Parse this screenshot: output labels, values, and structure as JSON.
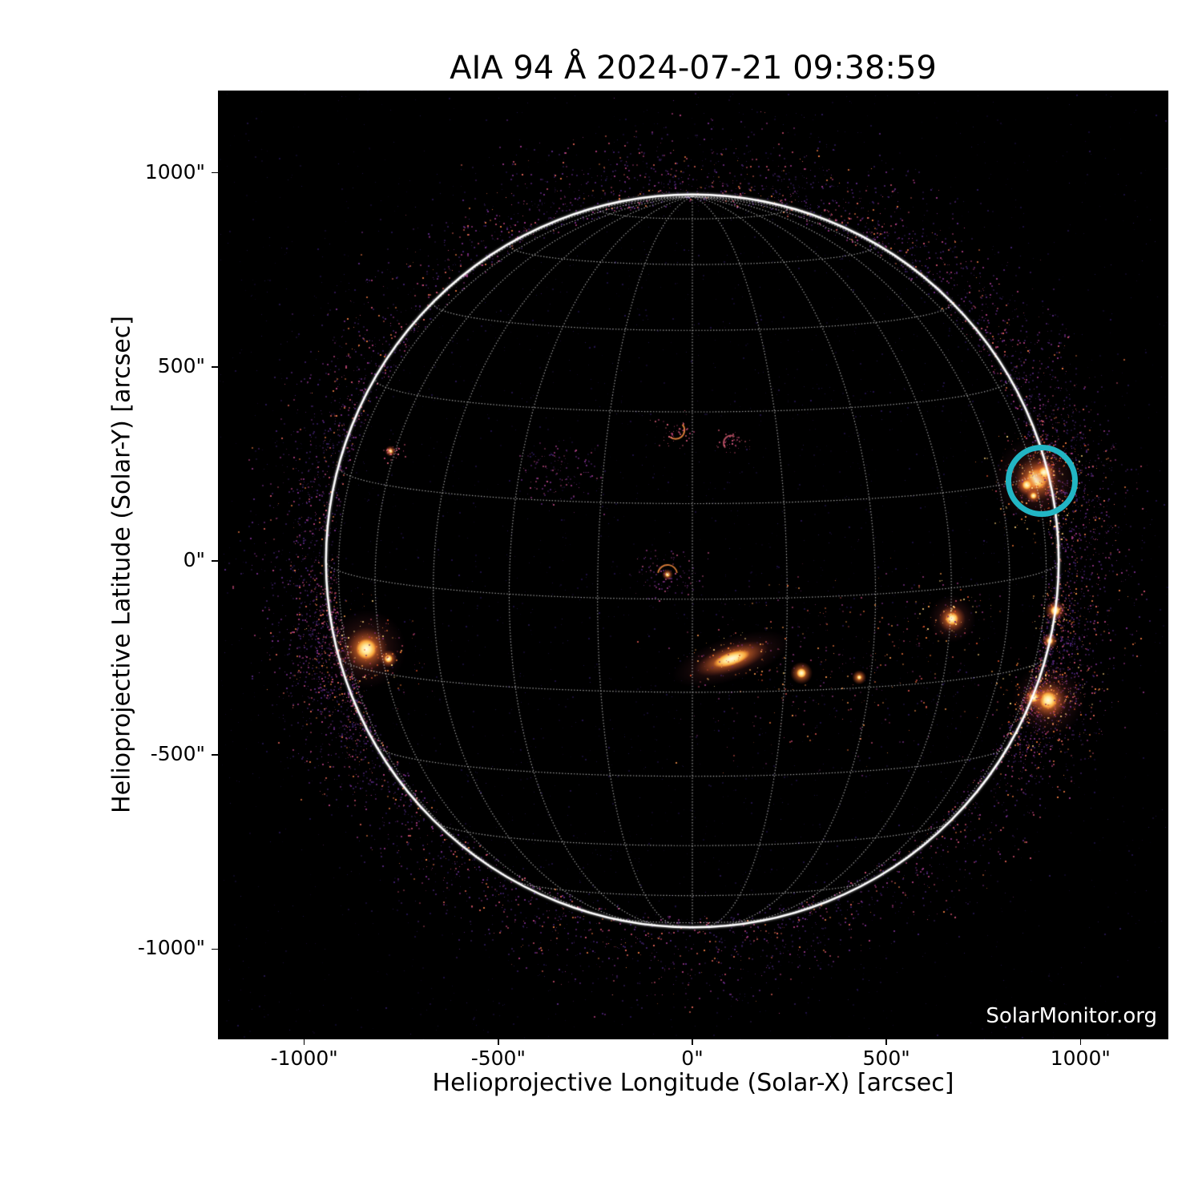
{
  "header": {
    "title": "AIA 94 Å 2024-07-21 09:38:59"
  },
  "watermark": "SolarMonitor.org",
  "chart_data": {
    "type": "solar_disk_image",
    "title": "AIA 94 Å 2024-07-21 09:38:59",
    "instrument": "AIA",
    "wavelength": "94 Å",
    "observation_time": "2024-07-21 09:38:59",
    "xlabel": "Helioprojective Longitude (Solar-X) [arcsec]",
    "ylabel": "Helioprojective Latitude (Solar-Y) [arcsec]",
    "xlim": [
      -1222,
      1226
    ],
    "ylim": [
      -1233,
      1212
    ],
    "x_ticks": {
      "values": [
        -1000,
        -500,
        0,
        500,
        1000
      ],
      "labels": [
        "-1000\"",
        "-500\"",
        "0\"",
        "500\"",
        "1000\""
      ]
    },
    "y_ticks": {
      "values": [
        1000,
        500,
        0,
        -500,
        -1000
      ],
      "labels": [
        "1000\"",
        "500\"",
        "0\"",
        "-500\"",
        "-1000\""
      ]
    },
    "background_color": "#000000",
    "grid": {
      "on": true,
      "spacing_deg": 15,
      "b0_deg": 6,
      "color": "235,235,235",
      "alpha": 0.72,
      "style": "dotted"
    },
    "solar_limb": {
      "radius_arcsec": 944,
      "color": "#ffffff"
    },
    "annotation": {
      "type": "circle",
      "x_arcsec": 900,
      "y_arcsec": 207,
      "radius_arcsec": 78,
      "color": "#22b5c4",
      "stroke_px": 7
    },
    "palettes": {
      "hot": [
        "#ffd27a",
        "#f59a48",
        "#e86f30",
        "#d14c28",
        "#a63a52",
        "#7c2c68"
      ],
      "field": [
        "#6f2a60",
        "#99355f",
        "#bf4a45",
        "#de6a36",
        "#5a2364",
        "#e88a46"
      ],
      "purple": [
        "#4a1e66",
        "#6b2a7e",
        "#8d327e",
        "#b04676"
      ],
      "pink": [
        "#c85070",
        "#e0607a",
        "#a83a68"
      ],
      "pinktrail": [
        "#b04070",
        "#d05878",
        "#8a3070",
        "#e07050"
      ]
    },
    "noise": {
      "seed": 1234,
      "page_dots": {
        "n": 2400,
        "colors": [
          "#120a2a",
          "#1c1042",
          "#261457",
          "#2e1b60"
        ]
      },
      "disk_dots": {
        "n": 800,
        "colors": [
          "#190e38",
          "#241453",
          "#2e1a62"
        ]
      },
      "corona": {
        "n": 3600,
        "colors": [
          "#301a52",
          "#3f1f6d",
          "#55257a",
          "#702a83",
          "#8f3280",
          "#a93a77",
          "#c24a69",
          "#d75e53",
          "#e2733f"
        ]
      },
      "hotspots": [
        {
          "angle_deg": 165,
          "width_deg": 9,
          "n": 500,
          "spread": 40
        },
        {
          "angle_deg": -13,
          "width_deg": 10,
          "n": 600,
          "spread": 46
        },
        {
          "angle_deg": 21,
          "width_deg": 9,
          "n": 480,
          "spread": 44
        },
        {
          "angle_deg": -160,
          "width_deg": 8,
          "n": 240,
          "spread": 36
        },
        {
          "angle_deg": 14,
          "width_deg": 5,
          "n": 200,
          "spread": 30
        },
        {
          "angle_deg": 90,
          "width_deg": 30,
          "n": 320,
          "spread": 48
        },
        {
          "angle_deg": 160,
          "width_deg": 18,
          "n": 280,
          "spread": 42
        },
        {
          "angle_deg": -48,
          "width_deg": 22,
          "n": 240,
          "spread": 40
        },
        {
          "angle_deg": -90,
          "width_deg": 25,
          "n": 400,
          "spread": 34
        }
      ]
    },
    "features": [
      {
        "type": "blob",
        "x": -840,
        "y": -227,
        "core": 13,
        "halo": 27,
        "glow": 50
      },
      {
        "type": "blob",
        "x": -783,
        "y": -252,
        "core": 5,
        "halo": 11,
        "glow": 0
      },
      {
        "type": "speckles",
        "x": -840,
        "y": -227,
        "n": 160,
        "sx": 70,
        "sy": 55,
        "palette": "hot"
      },
      {
        "type": "blob",
        "x": 101,
        "y": -252,
        "core": 14,
        "halo": 28,
        "glow": 46,
        "rot": -18,
        "esx": 1.7,
        "esy": 0.6
      },
      {
        "type": "speckles",
        "x": 101,
        "y": -252,
        "n": 70,
        "sx": 55,
        "sy": 40,
        "palette": "hot"
      },
      {
        "type": "speckles",
        "x": 343,
        "y": -268,
        "n": 300,
        "sx": 175,
        "sy": 120,
        "palette": "field"
      },
      {
        "type": "blob",
        "x": 281,
        "y": -289,
        "core": 6,
        "halo": 14,
        "glow": 0
      },
      {
        "type": "blob",
        "x": 430,
        "y": -300,
        "core": 3,
        "halo": 9,
        "glow": 0
      },
      {
        "type": "blob",
        "x": 669,
        "y": -149,
        "core": 8,
        "halo": 17,
        "glow": 30
      },
      {
        "type": "speckles",
        "x": 669,
        "y": -149,
        "n": 90,
        "sx": 55,
        "sy": 45,
        "palette": "hot"
      },
      {
        "type": "blob",
        "x": 888,
        "y": 211,
        "core": 13,
        "halo": 27,
        "glow": 55
      },
      {
        "type": "blob",
        "x": 862,
        "y": 196,
        "core": 6,
        "halo": 13,
        "glow": 0
      },
      {
        "type": "blob",
        "x": 906,
        "y": 228,
        "core": 7,
        "halo": 15,
        "glow": 0
      },
      {
        "type": "blob",
        "x": 879,
        "y": 168,
        "core": 4,
        "halo": 9,
        "glow": 0
      },
      {
        "type": "speckles",
        "x": 888,
        "y": 205,
        "n": 240,
        "sx": 60,
        "sy": 60,
        "palette": "hot"
      },
      {
        "type": "limbtrail",
        "a0": -22,
        "a1": -2,
        "n": 90,
        "palette": "hot"
      },
      {
        "type": "blob",
        "x": 935,
        "y": -128,
        "core": 6,
        "halo": 13,
        "glow": 0
      },
      {
        "type": "speckles",
        "x": 935,
        "y": -128,
        "n": 60,
        "sx": 30,
        "sy": 30,
        "palette": "hot"
      },
      {
        "type": "blob",
        "x": 921,
        "y": -206,
        "core": 4,
        "halo": 10,
        "glow": 0
      },
      {
        "type": "blob",
        "x": 917,
        "y": -359,
        "core": 11,
        "halo": 24,
        "glow": 46
      },
      {
        "type": "blob",
        "x": 880,
        "y": -352,
        "core": 6,
        "halo": 13,
        "glow": 0
      },
      {
        "type": "speckles",
        "x": 905,
        "y": -355,
        "n": 220,
        "sx": 65,
        "sy": 55,
        "palette": "hot"
      },
      {
        "type": "limbtrail",
        "a0": 16,
        "a1": 30,
        "n": 80,
        "palette": "hot"
      },
      {
        "type": "arc",
        "x": -64,
        "y": -35,
        "r": 12,
        "a0": 190,
        "a1": 350,
        "color": "#e8843c",
        "w": 2,
        "alpha": 0.9
      },
      {
        "type": "blob",
        "x": -64,
        "y": -35,
        "core": 3,
        "halo": 7,
        "glow": 0
      },
      {
        "type": "speckles",
        "x": -64,
        "y": -35,
        "n": 110,
        "sx": 42,
        "sy": 38,
        "palette": "purple"
      },
      {
        "type": "arc",
        "x": -43,
        "y": 337,
        "r": 11,
        "a0": -40,
        "a1": 130,
        "color": "#ef8a3e",
        "w": 2,
        "alpha": 0.9
      },
      {
        "type": "speckles",
        "x": -43,
        "y": 337,
        "n": 50,
        "sx": 26,
        "sy": 20,
        "palette": "pink"
      },
      {
        "type": "arc",
        "x": 99,
        "y": 304,
        "r": 9,
        "a0": 140,
        "a1": 300,
        "color": "#d85f74",
        "w": 2,
        "alpha": 0.8
      },
      {
        "type": "speckles",
        "x": 99,
        "y": 304,
        "n": 36,
        "sx": 20,
        "sy": 14,
        "palette": "pink"
      },
      {
        "type": "speckles",
        "x": -339,
        "y": 227,
        "n": 130,
        "sx": 48,
        "sy": 40,
        "palette": "purple"
      },
      {
        "type": "blob",
        "x": -778,
        "y": 283,
        "core": 3,
        "halo": 7,
        "glow": 0
      },
      {
        "type": "speckles",
        "x": -778,
        "y": 283,
        "n": 30,
        "sx": 15,
        "sy": 13,
        "palette": "pink"
      },
      {
        "type": "limbtrail",
        "a0": 150,
        "a1": 178,
        "n": 90,
        "palette": "pinktrail"
      }
    ]
  }
}
